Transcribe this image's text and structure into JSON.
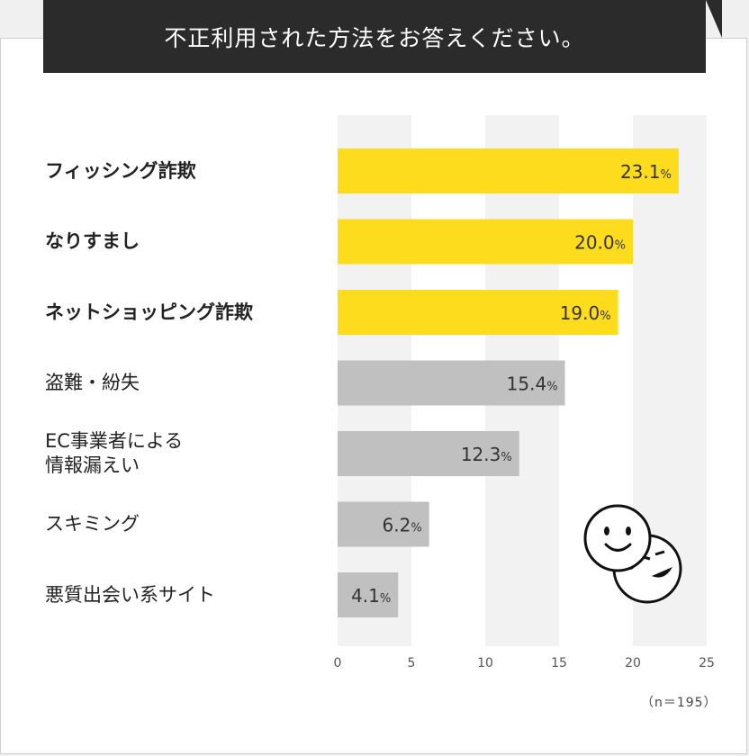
{
  "title": "不正利用された方法をお答えください。",
  "note": "（n＝195）",
  "colors": {
    "highlight": "#fcdc1c",
    "normal": "#c0c0c0",
    "stripe": "#f2f2f2",
    "title_bg": "#2b2b2b",
    "value_text": "#333333"
  },
  "chart_data": {
    "type": "bar",
    "orientation": "horizontal",
    "categories": [
      "フィッシング詐欺",
      "なりすまし",
      "ネットショッピング詐欺",
      "盗難・紛失",
      "EC事業者による\n情報漏えい",
      "スキミング",
      "悪質出会い系サイト"
    ],
    "values": [
      23.1,
      20.0,
      19.0,
      15.4,
      12.3,
      6.2,
      4.1
    ],
    "value_labels": [
      "23.1",
      "20.0",
      "19.0",
      "15.4",
      "12.3",
      "6.2",
      "4.1"
    ],
    "unit": "%",
    "highlighted": [
      true,
      true,
      true,
      false,
      false,
      false,
      false
    ],
    "xlim": [
      0,
      25
    ],
    "xticks": [
      "0",
      "5",
      "10",
      "15",
      "20",
      "25"
    ],
    "grid": "alternating vertical bands",
    "legend": "none"
  },
  "illustration": "two-smiley-faces-icon"
}
